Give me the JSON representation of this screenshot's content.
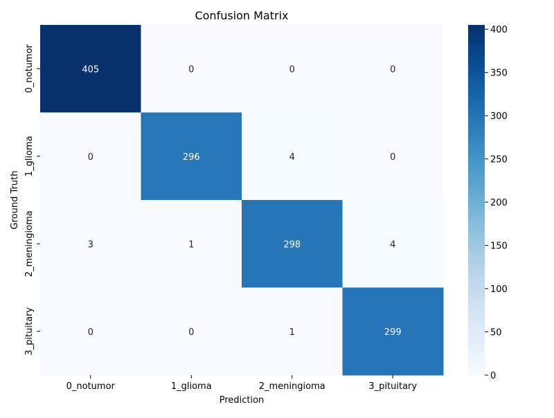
{
  "chart_data": {
    "type": "heatmap",
    "title": "Confusion Matrix",
    "xlabel": "Prediction",
    "ylabel": "Ground Truth",
    "x_categories": [
      "0_notumor",
      "1_glioma",
      "2_meningioma",
      "3_pituitary"
    ],
    "y_categories": [
      "0_notumor",
      "1_glioma",
      "2_meningioma",
      "3_pituitary"
    ],
    "values": [
      [
        405,
        0,
        0,
        0
      ],
      [
        0,
        296,
        4,
        0
      ],
      [
        3,
        1,
        298,
        4
      ],
      [
        0,
        0,
        1,
        299
      ]
    ],
    "colorbar": {
      "range": [
        0,
        405
      ],
      "ticks": [
        0,
        50,
        100,
        150,
        200,
        250,
        300,
        350,
        400
      ],
      "colormap": "Blues"
    }
  }
}
